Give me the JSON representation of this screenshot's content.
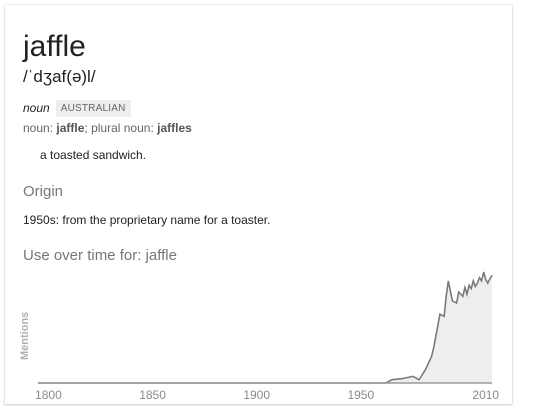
{
  "entry": {
    "word": "jaffle",
    "phonetic": "/ˈdʒaf(ə)l/",
    "part_of_speech": "noun",
    "region": "AUSTRALIAN",
    "forms": {
      "noun_label": "noun:",
      "noun_value": "jaffle",
      "plural_label": "plural noun:",
      "plural_value": "jaffles",
      "separator": ";"
    },
    "definition": "a toasted sandwich.",
    "origin_heading": "Origin",
    "origin_text": "1950s: from the proprietary name for a toaster."
  },
  "usage": {
    "heading_prefix": "Use over time for:",
    "heading_word": "jaffle",
    "y_axis_label": "Mentions",
    "fill_color": "#eeeeee",
    "line_color": "#7a7a7a"
  },
  "chart_data": {
    "type": "area",
    "title": "Use over time for: jaffle",
    "xlabel": "",
    "ylabel": "Mentions",
    "x_ticks": [
      1800,
      1850,
      1900,
      1950,
      2010
    ],
    "xlim": [
      1795,
      2013
    ],
    "ylim": [
      0,
      1
    ],
    "x": [
      1795,
      1900,
      1962,
      1965,
      1970,
      1975,
      1978,
      1981,
      1984,
      1985,
      1987,
      1988,
      1990,
      1991,
      1992,
      1994,
      1996,
      1997,
      1999,
      2000,
      2001,
      2002,
      2003,
      2004,
      2005,
      2006,
      2007,
      2008,
      2009,
      2010,
      2011,
      2012,
      2013
    ],
    "values": [
      0.0,
      0.0,
      0.0,
      0.03,
      0.04,
      0.06,
      0.03,
      0.12,
      0.24,
      0.32,
      0.52,
      0.62,
      0.6,
      0.78,
      0.92,
      0.74,
      0.72,
      0.82,
      0.78,
      0.86,
      0.8,
      0.88,
      0.85,
      0.92,
      0.87,
      0.9,
      0.95,
      0.92,
      1.0,
      0.93,
      0.9,
      0.94,
      0.97
    ],
    "grid": false
  }
}
